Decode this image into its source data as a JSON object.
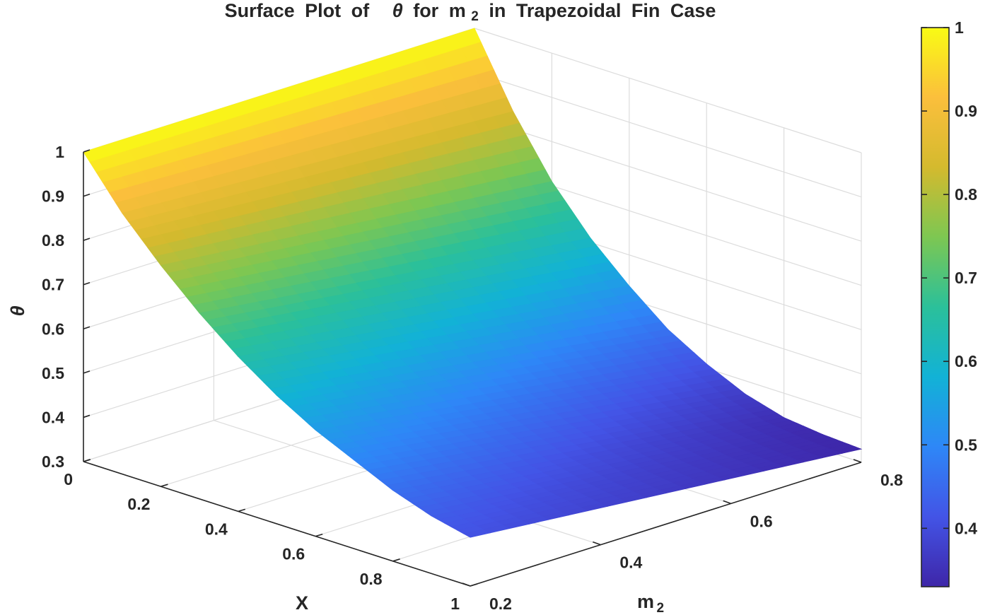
{
  "chart_data": {
    "type": "surface",
    "title": {
      "prefix": "Surface Plot of",
      "symbol": "θ",
      "middle": "for",
      "var_main": "m",
      "var_sub": "2",
      "suffix": "in Trapezoidal Fin Case"
    },
    "xlabel": "X",
    "ylabel": {
      "main": "m",
      "sub": "2"
    },
    "zlabel": "θ",
    "x_range": [
      0,
      1
    ],
    "y_range": [
      0.2,
      0.8
    ],
    "z_range": [
      0.3,
      1
    ],
    "x_ticks": [
      "0",
      "0.2",
      "0.4",
      "0.6",
      "0.8",
      "1"
    ],
    "y_ticks": [
      "0.2",
      "0.4",
      "0.6",
      "0.8"
    ],
    "z_ticks": [
      "0.3",
      "0.4",
      "0.5",
      "0.6",
      "0.7",
      "0.8",
      "0.9",
      "1"
    ],
    "grid": true,
    "colormap": "parula",
    "colormap_stops": [
      "#3e26a8",
      "#4354e6",
      "#2e87f7",
      "#12b2d6",
      "#2bc09a",
      "#7dc752",
      "#d4ba2e",
      "#fbbf3c",
      "#f9fb14"
    ],
    "colorbar": {
      "range": [
        0.33,
        1
      ],
      "ticks": [
        "0.4",
        "0.5",
        "0.6",
        "0.7",
        "0.8",
        "0.9",
        "1"
      ]
    },
    "surface_samples": {
      "X": [
        0,
        0.1,
        0.2,
        0.3,
        0.4,
        0.5,
        0.6,
        0.7,
        0.8,
        0.9,
        1
      ],
      "theta_at_m2_0_2": [
        1,
        0.89,
        0.8,
        0.72,
        0.65,
        0.59,
        0.54,
        0.5,
        0.46,
        0.43,
        0.41
      ],
      "theta_at_m2_0_8": [
        1,
        0.84,
        0.71,
        0.61,
        0.53,
        0.46,
        0.41,
        0.37,
        0.345,
        0.335,
        0.33
      ]
    }
  }
}
